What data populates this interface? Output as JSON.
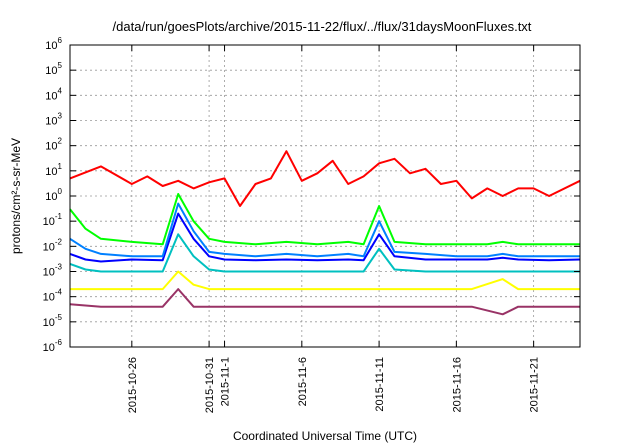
{
  "chart_data": {
    "type": "line",
    "title": "/data/run/goesPlots/archive/2015-11-22/flux/../flux/31daysMoonFluxes.txt",
    "xlabel": "Coordinated Universal Time (UTC)",
    "ylabel": "protons/cm²-s-sr-MeV",
    "yscale": "log",
    "ylim": [
      1e-06,
      1000000.0
    ],
    "xlim": [
      "2015-10-22",
      "2015-11-24"
    ],
    "x_ticks": [
      "2015-10-26",
      "2015-10-31",
      "2015-11-1",
      "2015-11-6",
      "2015-11-11",
      "2015-11-16",
      "2015-11-21"
    ],
    "y_ticks": [
      {
        "base": "10",
        "exp": "-6"
      },
      {
        "base": "10",
        "exp": "-5"
      },
      {
        "base": "10",
        "exp": "-4"
      },
      {
        "base": "10",
        "exp": "-3"
      },
      {
        "base": "10",
        "exp": "-2"
      },
      {
        "base": "10",
        "exp": "-1"
      },
      {
        "base": "10",
        "exp": "0"
      },
      {
        "base": "10",
        "exp": "1"
      },
      {
        "base": "10",
        "exp": "2"
      },
      {
        "base": "10",
        "exp": "3"
      },
      {
        "base": "10",
        "exp": "4"
      },
      {
        "base": "10",
        "exp": "5"
      },
      {
        "base": "10",
        "exp": "6"
      }
    ],
    "grid": true,
    "legend": "none",
    "series": [
      {
        "color": "#ff0000",
        "x": [
          "2015-10-22",
          "2015-10-24",
          "2015-10-26",
          "2015-10-27",
          "2015-10-28",
          "2015-10-29",
          "2015-10-30",
          "2015-10-31",
          "2015-11-01",
          "2015-11-02",
          "2015-11-03",
          "2015-11-04",
          "2015-11-05",
          "2015-11-06",
          "2015-11-07",
          "2015-11-08",
          "2015-11-09",
          "2015-11-10",
          "2015-11-11",
          "2015-11-12",
          "2015-11-13",
          "2015-11-14",
          "2015-11-15",
          "2015-11-16",
          "2015-11-17",
          "2015-11-18",
          "2015-11-19",
          "2015-11-20",
          "2015-11-21",
          "2015-11-22",
          "2015-11-24"
        ],
        "values": [
          5,
          15,
          3,
          6,
          2.5,
          4,
          2,
          3.5,
          5,
          0.4,
          3,
          5,
          60,
          4,
          8,
          25,
          3,
          6,
          20,
          30,
          8,
          12,
          3,
          4,
          0.8,
          2,
          1,
          2,
          2,
          1,
          4
        ]
      },
      {
        "color": "#00ff00",
        "x": [
          "2015-10-22",
          "2015-10-23",
          "2015-10-24",
          "2015-10-26",
          "2015-10-28",
          "2015-10-29",
          "2015-10-30",
          "2015-10-31",
          "2015-11-01",
          "2015-11-03",
          "2015-11-05",
          "2015-11-07",
          "2015-11-09",
          "2015-11-10",
          "2015-11-11",
          "2015-11-12",
          "2015-11-14",
          "2015-11-16",
          "2015-11-18",
          "2015-11-19",
          "2015-11-20",
          "2015-11-22",
          "2015-11-24"
        ],
        "values": [
          0.3,
          0.05,
          0.02,
          0.015,
          0.012,
          1.2,
          0.1,
          0.02,
          0.015,
          0.012,
          0.015,
          0.012,
          0.015,
          0.012,
          0.4,
          0.015,
          0.012,
          0.012,
          0.012,
          0.015,
          0.012,
          0.012,
          0.012
        ]
      },
      {
        "color": "#0000ff",
        "x": [
          "2015-10-22",
          "2015-10-23",
          "2015-10-24",
          "2015-10-26",
          "2015-10-28",
          "2015-10-29",
          "2015-10-30",
          "2015-10-31",
          "2015-11-01",
          "2015-11-03",
          "2015-11-05",
          "2015-11-07",
          "2015-11-09",
          "2015-11-10",
          "2015-11-11",
          "2015-11-12",
          "2015-11-14",
          "2015-11-16",
          "2015-11-18",
          "2015-11-19",
          "2015-11-20",
          "2015-11-22",
          "2015-11-24"
        ],
        "values": [
          0.005,
          0.003,
          0.0025,
          0.003,
          0.0028,
          0.2,
          0.02,
          0.004,
          0.003,
          0.0028,
          0.003,
          0.0028,
          0.003,
          0.0028,
          0.03,
          0.004,
          0.003,
          0.003,
          0.003,
          0.0035,
          0.003,
          0.0028,
          0.003
        ]
      },
      {
        "color": "#0080ff",
        "x": [
          "2015-10-22",
          "2015-10-23",
          "2015-10-24",
          "2015-10-26",
          "2015-10-28",
          "2015-10-29",
          "2015-10-30",
          "2015-10-31",
          "2015-11-01",
          "2015-11-03",
          "2015-11-05",
          "2015-11-07",
          "2015-11-09",
          "2015-11-10",
          "2015-11-11",
          "2015-11-12",
          "2015-11-14",
          "2015-11-16",
          "2015-11-18",
          "2015-11-19",
          "2015-11-20",
          "2015-11-22",
          "2015-11-24"
        ],
        "values": [
          0.02,
          0.008,
          0.005,
          0.004,
          0.004,
          0.5,
          0.04,
          0.006,
          0.005,
          0.004,
          0.005,
          0.004,
          0.005,
          0.004,
          0.1,
          0.006,
          0.005,
          0.004,
          0.004,
          0.005,
          0.004,
          0.004,
          0.004
        ]
      },
      {
        "color": "#00c0c0",
        "x": [
          "2015-10-22",
          "2015-10-23",
          "2015-10-24",
          "2015-10-26",
          "2015-10-28",
          "2015-10-29",
          "2015-10-30",
          "2015-10-31",
          "2015-11-01",
          "2015-11-03",
          "2015-11-05",
          "2015-11-07",
          "2015-11-09",
          "2015-11-10",
          "2015-11-11",
          "2015-11-12",
          "2015-11-14",
          "2015-11-16",
          "2015-11-18",
          "2015-11-19",
          "2015-11-20",
          "2015-11-22",
          "2015-11-24"
        ],
        "values": [
          0.002,
          0.0012,
          0.001,
          0.001,
          0.001,
          0.03,
          0.004,
          0.0012,
          0.001,
          0.001,
          0.001,
          0.001,
          0.001,
          0.001,
          0.008,
          0.0012,
          0.001,
          0.001,
          0.001,
          0.001,
          0.001,
          0.001,
          0.001
        ]
      },
      {
        "color": "#ffff00",
        "x": [
          "2015-10-22",
          "2015-10-24",
          "2015-10-26",
          "2015-10-28",
          "2015-10-29",
          "2015-10-30",
          "2015-10-31",
          "2015-11-01",
          "2015-11-03",
          "2015-11-05",
          "2015-11-07",
          "2015-11-09",
          "2015-11-11",
          "2015-11-13",
          "2015-11-15",
          "2015-11-17",
          "2015-11-19",
          "2015-11-20",
          "2015-11-22",
          "2015-11-24"
        ],
        "values": [
          0.0002,
          0.0002,
          0.0002,
          0.0002,
          0.001,
          0.0003,
          0.0002,
          0.0002,
          0.0002,
          0.0002,
          0.0002,
          0.0002,
          0.0002,
          0.0002,
          0.0002,
          0.0002,
          0.0005,
          0.0002,
          0.0002,
          0.0002
        ]
      },
      {
        "color": "#993366",
        "x": [
          "2015-10-22",
          "2015-10-24",
          "2015-10-26",
          "2015-10-28",
          "2015-10-29",
          "2015-10-30",
          "2015-10-31",
          "2015-11-01",
          "2015-11-03",
          "2015-11-05",
          "2015-11-07",
          "2015-11-09",
          "2015-11-11",
          "2015-11-13",
          "2015-11-15",
          "2015-11-17",
          "2015-11-19",
          "2015-11-20",
          "2015-11-22",
          "2015-11-24"
        ],
        "values": [
          5e-05,
          4e-05,
          4e-05,
          4e-05,
          0.0002,
          4e-05,
          4e-05,
          4e-05,
          4e-05,
          4e-05,
          4e-05,
          4e-05,
          4e-05,
          4e-05,
          4e-05,
          4e-05,
          2e-05,
          4e-05,
          4e-05,
          4e-05
        ]
      }
    ]
  }
}
